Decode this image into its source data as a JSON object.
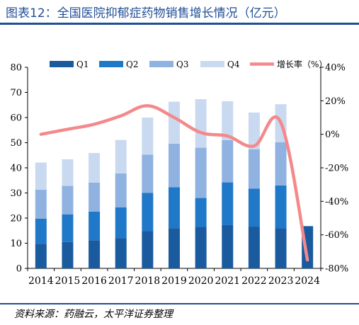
{
  "title": "图表12：全国医院抑郁症药物销售增长情况（亿元）",
  "source": "资料来源：药融云，太平洋证券整理",
  "chart_data": {
    "type": "bar",
    "stacked": true,
    "categories": [
      "2014",
      "2015",
      "2016",
      "2017",
      "2018",
      "2019",
      "2020",
      "2021",
      "2022",
      "2023",
      "2024"
    ],
    "series": [
      {
        "name": "Q1",
        "color": "#1a5a9e",
        "values": [
          9.8,
          10.5,
          11.2,
          12.0,
          14.8,
          16.0,
          16.5,
          17.2,
          16.6,
          15.9,
          16.8
        ]
      },
      {
        "name": "Q2",
        "color": "#1f78c8",
        "values": [
          10.0,
          11.0,
          11.4,
          12.3,
          15.2,
          16.3,
          11.5,
          17.0,
          15.1,
          17.1,
          0
        ]
      },
      {
        "name": "Q3",
        "color": "#8fb2e0",
        "values": [
          11.5,
          11.3,
          11.5,
          13.5,
          15.2,
          17.3,
          20.0,
          16.8,
          15.7,
          17.2,
          0
        ]
      },
      {
        "name": "Q4",
        "color": "#c9daf0",
        "values": [
          10.8,
          10.6,
          11.8,
          13.3,
          14.8,
          16.7,
          19.3,
          15.5,
          14.6,
          15.1,
          0
        ]
      }
    ],
    "line": {
      "name": "增长率（%）",
      "color": "#f4898b",
      "values": [
        0,
        3,
        6,
        11,
        17,
        10,
        1,
        -1,
        -7,
        7,
        -75
      ]
    },
    "yleft": {
      "min": 0,
      "max": 80,
      "ticks": [
        0,
        10,
        20,
        30,
        40,
        50,
        60,
        70,
        80
      ]
    },
    "yright": {
      "min": -80,
      "max": 40,
      "ticks": [
        -80,
        -60,
        -40,
        -20,
        0,
        20,
        40
      ],
      "tick_labels": [
        "-80%",
        "-60%",
        "-40%",
        "-20%",
        "0%",
        "20%",
        "40%"
      ]
    },
    "legend_position": "top"
  }
}
